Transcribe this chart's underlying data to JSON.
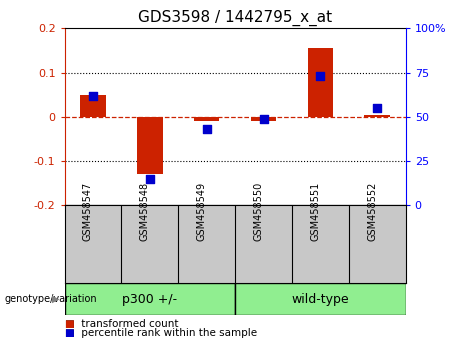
{
  "title": "GDS3598 / 1442795_x_at",
  "samples": [
    "GSM458547",
    "GSM458548",
    "GSM458549",
    "GSM458550",
    "GSM458551",
    "GSM458552"
  ],
  "transformed_count": [
    0.05,
    -0.13,
    -0.01,
    -0.01,
    0.155,
    0.005
  ],
  "percentile_rank": [
    62,
    15,
    43,
    49,
    73,
    55
  ],
  "ylim_left": [
    -0.2,
    0.2
  ],
  "yticks_left": [
    -0.2,
    -0.1,
    0.0,
    0.1,
    0.2
  ],
  "ylim_right": [
    0,
    100
  ],
  "yticks_right": [
    0,
    25,
    50,
    75,
    100
  ],
  "bar_color": "#CC2200",
  "dot_color": "#0000CC",
  "hline_color": "#CC2200",
  "sample_bg": "#C8C8C8",
  "green_color": "#90EE90",
  "legend_red_label": "transformed count",
  "legend_blue_label": "percentile rank within the sample",
  "genotype_label": "genotype/variation",
  "group1_label": "p300 +/-",
  "group2_label": "wild-type",
  "title_fontsize": 11,
  "tick_fontsize": 8,
  "label_fontsize": 7,
  "group_fontsize": 9
}
